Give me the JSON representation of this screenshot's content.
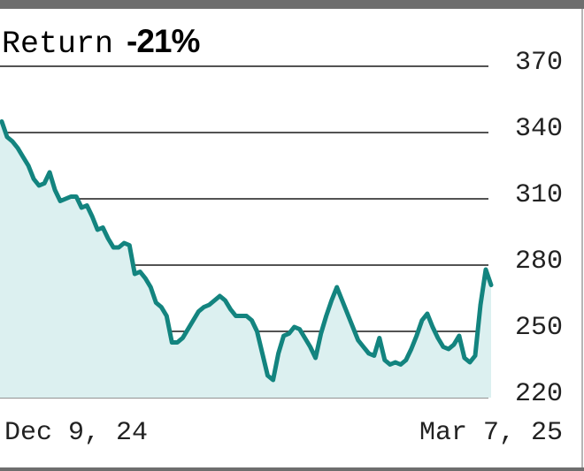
{
  "return": {
    "label": "Return",
    "value": "-21%"
  },
  "chart_data": {
    "type": "area",
    "title": "",
    "xlabel": "",
    "ylabel": "",
    "x_tick_labels": [
      "Dec 9, 24",
      "Mar 7, 25"
    ],
    "y_ticks": [
      220,
      250,
      280,
      310,
      340,
      370
    ],
    "ylim": [
      220,
      370
    ],
    "grid": true,
    "line_color": "#13847f",
    "fill_color": "#dcf0f0",
    "series": [
      {
        "values": [
          345,
          338,
          336,
          333,
          329,
          325,
          319,
          316,
          317,
          322,
          314,
          309,
          310,
          311,
          311,
          306,
          307,
          302,
          296,
          297,
          292,
          288,
          288,
          290,
          289,
          276,
          277,
          274,
          270,
          263,
          261,
          257,
          245,
          245,
          247,
          251,
          255,
          259,
          261,
          262,
          264,
          266,
          264,
          260,
          257,
          257,
          257,
          255,
          250,
          240,
          230,
          228,
          240,
          248,
          249,
          252,
          251,
          247,
          243,
          238,
          249,
          257,
          264,
          270,
          264,
          258,
          252,
          246,
          243,
          240,
          239,
          247,
          237,
          235,
          236,
          235,
          237,
          242,
          248,
          255,
          258,
          252,
          247,
          243,
          242,
          244,
          248,
          238,
          236,
          239,
          262,
          278,
          271
        ]
      }
    ]
  }
}
